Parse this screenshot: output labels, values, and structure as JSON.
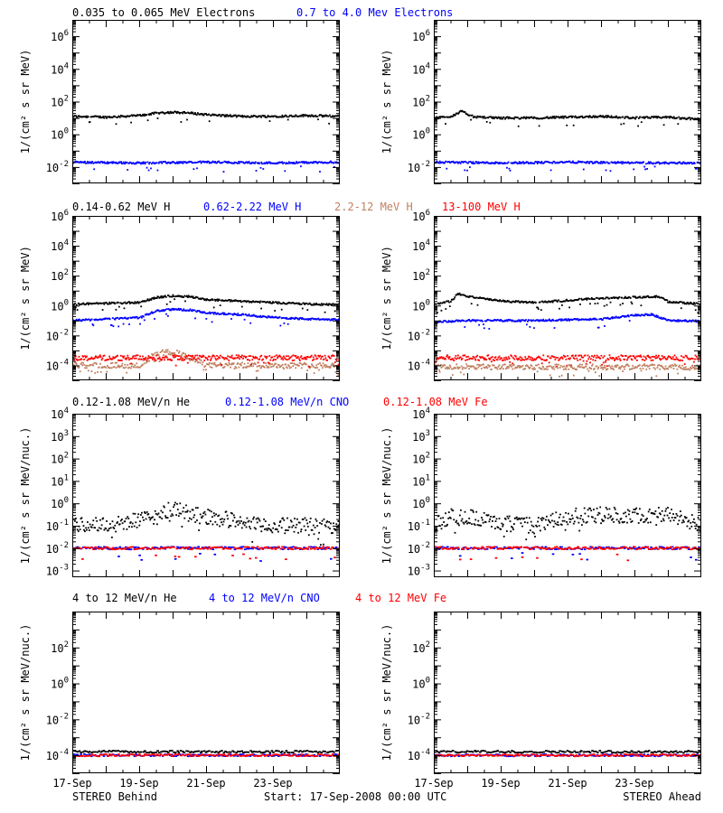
{
  "colors": {
    "black": "#000000",
    "blue": "#0000ff",
    "brown": "#c08060",
    "red": "#ff0000"
  },
  "footer": {
    "left": "STEREO Behind",
    "center": "Start: 17-Sep-2008 00:00 UTC",
    "right": "STEREO Ahead"
  },
  "x_tick_labels": [
    "17-Sep",
    "19-Sep",
    "21-Sep",
    "23-Sep"
  ],
  "chart_data": [
    {
      "type": "scatter",
      "row": "electrons",
      "legend": [
        {
          "text": "0.035 to 0.065 MeV Electrons",
          "color": "black"
        },
        {
          "text": "0.7 to 4.0 Mev Electrons",
          "color": "blue"
        }
      ],
      "ylabel": "1/(cm² s sr MeV)",
      "yscale": "log",
      "ylim_exp": [
        -3,
        7
      ],
      "y_ticks": [
        {
          "base": "10",
          "exp": "-2"
        },
        {
          "base": "10",
          "exp": "0"
        },
        {
          "base": "10",
          "exp": "2"
        },
        {
          "base": "10",
          "exp": "4"
        },
        {
          "base": "10",
          "exp": "6"
        }
      ],
      "x_days": [
        0,
        8
      ],
      "panels": [
        {
          "spacecraft": "STEREO Behind",
          "series": [
            {
              "color": "black",
              "x_days": [
                0,
                1,
                2,
                2.5,
                3,
                3.5,
                4,
                5,
                6,
                7,
                8
              ],
              "log10_y": [
                1.1,
                1.05,
                1.15,
                1.3,
                1.35,
                1.3,
                1.2,
                1.1,
                1.1,
                1.15,
                1.1
              ]
            },
            {
              "color": "blue",
              "x_days": [
                0,
                2,
                4,
                6,
                8
              ],
              "log10_y": [
                -1.7,
                -1.75,
                -1.7,
                -1.75,
                -1.7
              ]
            }
          ]
        },
        {
          "spacecraft": "STEREO Ahead",
          "series": [
            {
              "color": "black",
              "x_days": [
                0,
                0.5,
                0.8,
                1.2,
                2,
                3,
                4,
                5,
                6,
                7,
                8
              ],
              "log10_y": [
                1.0,
                1.1,
                1.4,
                1.05,
                1.0,
                1.0,
                1.05,
                1.1,
                1.0,
                1.05,
                0.9
              ]
            },
            {
              "color": "blue",
              "x_days": [
                0,
                2,
                4,
                6,
                8
              ],
              "log10_y": [
                -1.7,
                -1.75,
                -1.7,
                -1.75,
                -1.75
              ]
            }
          ]
        }
      ]
    },
    {
      "type": "scatter",
      "row": "protons",
      "legend": [
        {
          "text": "0.14-0.62 MeV H",
          "color": "black"
        },
        {
          "text": "0.62-2.22 MeV H",
          "color": "blue"
        },
        {
          "text": "2.2-12 MeV H",
          "color": "brown"
        },
        {
          "text": "13-100 MeV H",
          "color": "red"
        }
      ],
      "ylabel": "1/(cm² s sr MeV)",
      "yscale": "log",
      "ylim_exp": [
        -5,
        6
      ],
      "y_ticks": [
        {
          "base": "10",
          "exp": "-4"
        },
        {
          "base": "10",
          "exp": "-2"
        },
        {
          "base": "10",
          "exp": "0"
        },
        {
          "base": "10",
          "exp": "2"
        },
        {
          "base": "10",
          "exp": "4"
        },
        {
          "base": "10",
          "exp": "6"
        }
      ],
      "x_days": [
        0,
        8
      ],
      "panels": [
        {
          "spacecraft": "STEREO Behind",
          "series": [
            {
              "color": "black",
              "x_days": [
                0,
                1,
                2,
                2.5,
                3,
                3.5,
                4,
                5,
                6,
                7,
                8
              ],
              "log10_y": [
                0.1,
                0.15,
                0.2,
                0.55,
                0.65,
                0.6,
                0.4,
                0.3,
                0.2,
                0.1,
                0.05
              ]
            },
            {
              "color": "blue",
              "x_days": [
                0,
                1,
                2,
                2.5,
                3,
                3.5,
                4,
                5,
                6,
                7,
                8
              ],
              "log10_y": [
                -1.0,
                -0.9,
                -0.8,
                -0.35,
                -0.25,
                -0.3,
                -0.5,
                -0.6,
                -0.8,
                -0.9,
                -0.95
              ]
            },
            {
              "color": "brown",
              "x_days": [
                0,
                2,
                2.5,
                3,
                3.5,
                4,
                6,
                8
              ],
              "log10_y": [
                -4.0,
                -4.0,
                -3.2,
                -3.1,
                -3.5,
                -4.0,
                -4.0,
                -4.0
              ]
            },
            {
              "color": "red",
              "x_days": [
                0,
                2,
                4,
                6,
                8
              ],
              "log10_y": [
                -3.5,
                -3.5,
                -3.5,
                -3.5,
                -3.5
              ]
            }
          ]
        },
        {
          "spacecraft": "STEREO Ahead",
          "series": [
            {
              "color": "black",
              "x_days": [
                0,
                0.5,
                0.7,
                1,
                2,
                3,
                4,
                5,
                6,
                6.7,
                7,
                8
              ],
              "log10_y": [
                0.1,
                0.3,
                0.8,
                0.6,
                0.3,
                0.2,
                0.35,
                0.5,
                0.55,
                0.6,
                0.25,
                0.1
              ]
            },
            {
              "color": "blue",
              "x_days": [
                0,
                1,
                2,
                3,
                4,
                5,
                6,
                6.5,
                7,
                8
              ],
              "log10_y": [
                -1.1,
                -1.0,
                -1.0,
                -1.0,
                -0.95,
                -0.9,
                -0.65,
                -0.6,
                -1.0,
                -1.05
              ]
            },
            {
              "color": "red",
              "x_days": [
                0,
                2,
                4,
                6,
                8
              ],
              "log10_y": [
                -3.5,
                -3.5,
                -3.5,
                -3.5,
                -3.5
              ]
            },
            {
              "color": "brown",
              "x_days": [
                0,
                4,
                8
              ],
              "log10_y": [
                -4.1,
                -4.1,
                -4.1
              ]
            }
          ]
        }
      ]
    },
    {
      "type": "scatter",
      "row": "heavy_ions_low",
      "legend": [
        {
          "text": "0.12-1.08 MeV/n He",
          "color": "black"
        },
        {
          "text": "0.12-1.08 MeV/n CNO",
          "color": "blue"
        },
        {
          "text": "0.12-1.08 MeV Fe",
          "color": "red"
        }
      ],
      "ylabel": "1/(cm² s sr MeV/nuc.)",
      "yscale": "log",
      "ylim_exp": [
        -3.3,
        4
      ],
      "y_ticks": [
        {
          "base": "10",
          "exp": "-3"
        },
        {
          "base": "10",
          "exp": "-2"
        },
        {
          "base": "10",
          "exp": "-1"
        },
        {
          "base": "10",
          "exp": "0"
        },
        {
          "base": "10",
          "exp": "1"
        },
        {
          "base": "10",
          "exp": "2"
        },
        {
          "base": "10",
          "exp": "3"
        },
        {
          "base": "10",
          "exp": "4"
        }
      ],
      "x_days": [
        0,
        8
      ],
      "panels": [
        {
          "spacecraft": "STEREO Behind",
          "series": [
            {
              "color": "black",
              "x_days": [
                0,
                1.5,
                2.5,
                3,
                3.5,
                4,
                5,
                5.5,
                8
              ],
              "log10_y": [
                -1.0,
                -0.9,
                -0.6,
                -0.2,
                -0.5,
                -0.6,
                -0.8,
                -1.0,
                -1.0
              ]
            },
            {
              "color": "blue",
              "x_days": [
                0,
                8
              ],
              "log10_y": [
                -2.0,
                -2.0
              ]
            },
            {
              "color": "red",
              "x_days": [
                0,
                8
              ],
              "log10_y": [
                -2.0,
                -2.0
              ]
            }
          ]
        },
        {
          "spacecraft": "STEREO Ahead",
          "series": [
            {
              "color": "black",
              "x_days": [
                0,
                0.5,
                1,
                2,
                3,
                4,
                5,
                6,
                7,
                8
              ],
              "log10_y": [
                -1.0,
                -0.55,
                -0.6,
                -0.9,
                -1.0,
                -0.6,
                -0.5,
                -0.55,
                -0.5,
                -1.0
              ]
            },
            {
              "color": "blue",
              "x_days": [
                0,
                8
              ],
              "log10_y": [
                -2.0,
                -2.0
              ]
            },
            {
              "color": "red",
              "x_days": [
                0,
                8
              ],
              "log10_y": [
                -2.0,
                -2.0
              ]
            }
          ]
        }
      ]
    },
    {
      "type": "scatter",
      "row": "heavy_ions_high",
      "legend": [
        {
          "text": "4 to 12 MeV/n He",
          "color": "black"
        },
        {
          "text": "4 to 12 MeV/n CNO",
          "color": "blue"
        },
        {
          "text": "4 to 12 MeV Fe",
          "color": "red"
        }
      ],
      "ylabel": "1/(cm² s sr MeV/nuc.)",
      "yscale": "log",
      "ylim_exp": [
        -5,
        4
      ],
      "y_ticks": [
        {
          "base": "10",
          "exp": "-4"
        },
        {
          "base": "10",
          "exp": "-2"
        },
        {
          "base": "10",
          "exp": "0"
        },
        {
          "base": "10",
          "exp": "2"
        }
      ],
      "x_days": [
        0,
        8
      ],
      "panels": [
        {
          "spacecraft": "STEREO Behind",
          "series": [
            {
              "color": "black",
              "x_days": [
                0,
                8
              ],
              "log10_y": [
                -3.8,
                -3.8
              ]
            },
            {
              "color": "blue",
              "x_days": [
                0,
                8
              ],
              "log10_y": [
                -4.0,
                -4.0
              ]
            },
            {
              "color": "red",
              "x_days": [
                0,
                8
              ],
              "log10_y": [
                -4.0,
                -4.0
              ]
            }
          ]
        },
        {
          "spacecraft": "STEREO Ahead",
          "series": [
            {
              "color": "black",
              "x_days": [
                0,
                8
              ],
              "log10_y": [
                -3.8,
                -3.8
              ]
            },
            {
              "color": "blue",
              "x_days": [
                0,
                8
              ],
              "log10_y": [
                -4.0,
                -4.0
              ]
            },
            {
              "color": "red",
              "x_days": [
                0,
                8
              ],
              "log10_y": [
                -4.0,
                -4.0
              ]
            }
          ]
        }
      ]
    }
  ]
}
